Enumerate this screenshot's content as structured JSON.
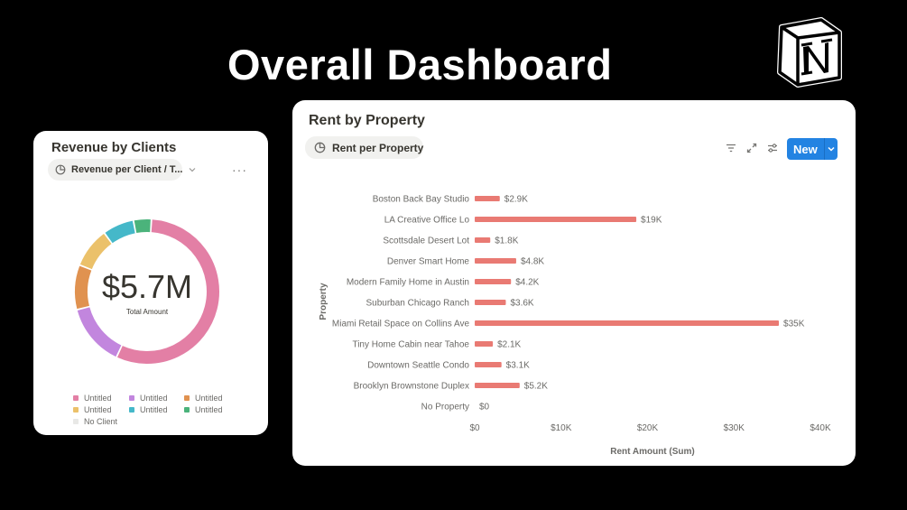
{
  "page_title": "Overall Dashboard",
  "colors": {
    "accent_blue": "#2383e2",
    "bar": "#e97a73"
  },
  "revenue_card": {
    "title": "Revenue by Clients",
    "view_chip": "Revenue per Client / T...",
    "more_icon": "more-horizontal-icon",
    "total_value": "$5.7M",
    "total_label": "Total Amount",
    "donut_segments": [
      {
        "color": "#e37fa5",
        "fraction": 0.56
      },
      {
        "color": "#c286de",
        "fraction": 0.14
      },
      {
        "color": "#e09250",
        "fraction": 0.1
      },
      {
        "color": "#ebc16a",
        "fraction": 0.09
      },
      {
        "color": "#45b8c9",
        "fraction": 0.07
      },
      {
        "color": "#4bb37b",
        "fraction": 0.04
      }
    ],
    "legend": [
      {
        "label": "Untitled",
        "color": "#e37fa5"
      },
      {
        "label": "Untitled",
        "color": "#c286de"
      },
      {
        "label": "Untitled",
        "color": "#e09250"
      },
      {
        "label": "Untitled",
        "color": "#ebc16a"
      },
      {
        "label": "Untitled",
        "color": "#45b8c9"
      },
      {
        "label": "Untitled",
        "color": "#4bb37b"
      },
      {
        "label": "No Client",
        "color": "#e8e8e6"
      }
    ]
  },
  "rent_card": {
    "title": "Rent by Property",
    "view_chip": "Rent per Property",
    "new_button": "New",
    "toolbar_icons": [
      "filter-icon",
      "expand-icon",
      "settings-sliders-icon"
    ]
  },
  "chart_data": {
    "type": "bar",
    "orientation": "horizontal",
    "categories": [
      "Boston Back Bay Studio",
      "LA Creative Office Lo",
      "Scottsdale Desert Lot",
      "Denver Smart Home",
      "Modern Family Home in Austin",
      "Suburban Chicago Ranch",
      "Miami Retail Space on Collins Ave",
      "Tiny Home Cabin near Tahoe",
      "Downtown Seattle Condo",
      "Brooklyn Brownstone Duplex",
      "No Property"
    ],
    "values": [
      2900,
      18700,
      1800,
      4800,
      4200,
      3600,
      35200,
      2100,
      3100,
      5200,
      0
    ],
    "value_labels": [
      "$2.9K",
      "$19K",
      "$1.8K",
      "$4.8K",
      "$4.2K",
      "$3.6K",
      "$35K",
      "$2.1K",
      "$3.1K",
      "$5.2K",
      "$0"
    ],
    "xlabel": "Rent Amount (Sum)",
    "ylabel": "Property",
    "xlim": [
      0,
      40000
    ],
    "xticks": [
      0,
      10000,
      20000,
      30000,
      40000
    ],
    "xtick_labels": [
      "$0",
      "$10K",
      "$20K",
      "$30K",
      "$40K"
    ],
    "grid": false,
    "legend": "none"
  }
}
